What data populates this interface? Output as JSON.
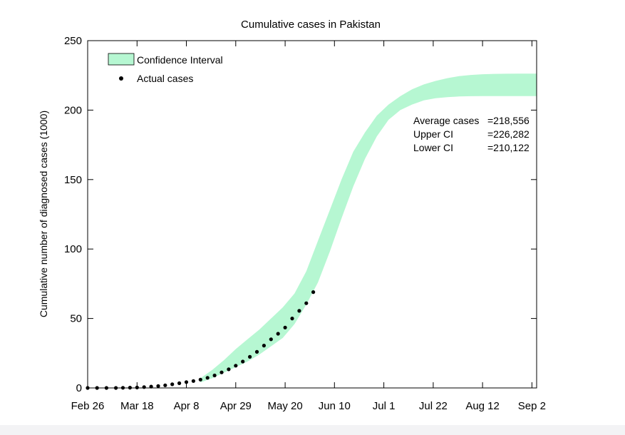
{
  "chart_data": {
    "type": "area",
    "title": "Cumulative cases in Pakistan",
    "xlabel": "",
    "ylabel": "Cumulative number of diagnosed cases (1000)",
    "ylim": [
      0,
      250
    ],
    "xlim": [
      "2020-02-26",
      "2020-09-04"
    ],
    "grid": false,
    "legend_position": "top-left",
    "x_ticks": [
      "Feb 26",
      "Mar 18",
      "Apr 8",
      "Apr 29",
      "May 20",
      "Jun 10",
      "Jul 1",
      "Jul 22",
      "Aug 12",
      "Sep 2"
    ],
    "x_tick_dates": [
      "2020-02-26",
      "2020-03-18",
      "2020-04-08",
      "2020-04-29",
      "2020-05-20",
      "2020-06-10",
      "2020-07-01",
      "2020-07-22",
      "2020-08-12",
      "2020-09-02"
    ],
    "y_ticks": [
      0,
      50,
      100,
      150,
      200,
      250
    ],
    "legend": [
      {
        "label": "Confidence Interval",
        "kind": "band",
        "color": "#b6f7d2"
      },
      {
        "label": "Actual cases",
        "kind": "point",
        "color": "#000000"
      }
    ],
    "annotation": [
      {
        "label": "Average cases",
        "value": "=218,556"
      },
      {
        "label": "Upper CI",
        "value": "=226,282"
      },
      {
        "label": "Lower CI",
        "value": "=210,122"
      }
    ],
    "series": [
      {
        "name": "Confidence Interval",
        "type": "band",
        "x": [
          "2020-04-14",
          "2020-04-19",
          "2020-04-24",
          "2020-04-29",
          "2020-05-04",
          "2020-05-09",
          "2020-05-14",
          "2020-05-19",
          "2020-05-24",
          "2020-05-29",
          "2020-06-03",
          "2020-06-08",
          "2020-06-13",
          "2020-06-18",
          "2020-06-23",
          "2020-06-28",
          "2020-07-03",
          "2020-07-08",
          "2020-07-13",
          "2020-07-18",
          "2020-07-23",
          "2020-07-28",
          "2020-08-02",
          "2020-08-07",
          "2020-08-12",
          "2020-08-17",
          "2020-08-22",
          "2020-08-27",
          "2020-09-01",
          "2020-09-04"
        ],
        "lower": [
          4,
          7,
          11,
          15,
          19,
          24,
          30,
          36,
          46,
          60,
          76,
          98,
          122,
          145,
          165,
          181,
          193,
          200,
          204,
          207,
          208.5,
          209.3,
          209.8,
          210,
          210.1,
          210.1,
          210.1,
          210.1,
          210.1,
          210.1
        ],
        "upper": [
          7,
          13,
          20,
          28,
          35,
          42,
          50,
          58,
          68,
          84,
          106,
          128,
          150,
          170,
          184,
          196,
          204,
          210,
          215,
          218.5,
          221,
          223,
          224.5,
          225.3,
          225.8,
          226.1,
          226.2,
          226.3,
          226.3,
          226.3
        ]
      },
      {
        "name": "Actual cases",
        "type": "scatter",
        "x": [
          "2020-02-26",
          "2020-03-01",
          "2020-03-05",
          "2020-03-09",
          "2020-03-12",
          "2020-03-15",
          "2020-03-18",
          "2020-03-21",
          "2020-03-24",
          "2020-03-27",
          "2020-03-30",
          "2020-04-02",
          "2020-04-05",
          "2020-04-08",
          "2020-04-11",
          "2020-04-14",
          "2020-04-17",
          "2020-04-20",
          "2020-04-23",
          "2020-04-26",
          "2020-04-29",
          "2020-05-02",
          "2020-05-05",
          "2020-05-08",
          "2020-05-11",
          "2020-05-14",
          "2020-05-17",
          "2020-05-20",
          "2020-05-23",
          "2020-05-26",
          "2020-05-29",
          "2020-06-01"
        ],
        "y": [
          0,
          0,
          0,
          0,
          0.1,
          0.2,
          0.3,
          0.6,
          1.0,
          1.4,
          1.9,
          2.6,
          3.4,
          4.2,
          5.0,
          6.0,
          7.3,
          9.0,
          11.2,
          13.4,
          16.0,
          19.0,
          22.4,
          26.0,
          30.5,
          35.0,
          39.0,
          43.5,
          50.0,
          55.5,
          61.0,
          69.0
        ]
      }
    ]
  }
}
